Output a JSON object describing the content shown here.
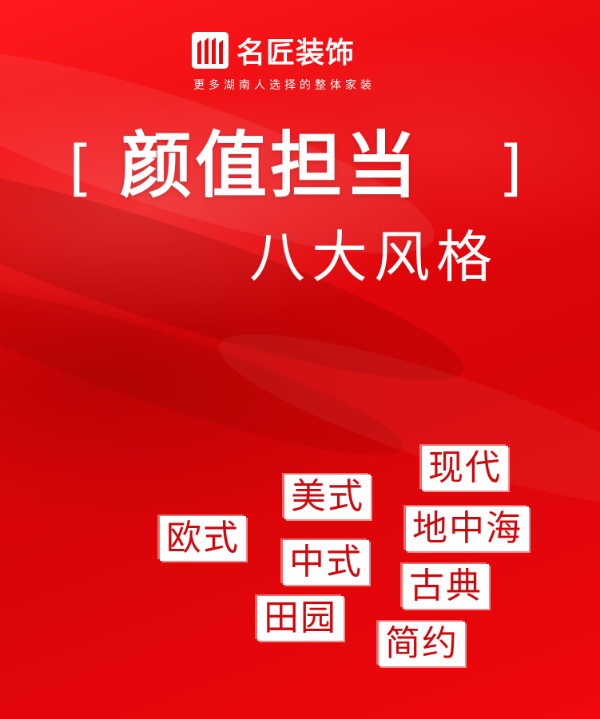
{
  "brand": {
    "name": "名匠装饰",
    "slogan": "更多湖南人选择的整体家装",
    "logo_icon": "building-bars-icon"
  },
  "headline": {
    "bracket_open": "[",
    "title": "颜值担当",
    "bracket_close": "]",
    "subtitle": "八大风格"
  },
  "styles": [
    "欧式",
    "美式",
    "中式",
    "田园",
    "现代",
    "地中海",
    "古典",
    "简约"
  ],
  "colors": {
    "background": "#e5080c",
    "tag_background": "#ffffff",
    "tag_text": "#d0070b",
    "text": "#ffffff"
  }
}
